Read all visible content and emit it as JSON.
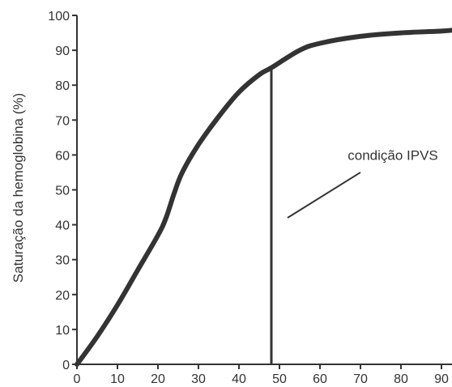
{
  "chart_data": {
    "type": "line",
    "title": "",
    "xlabel": "",
    "ylabel": "Saturação da hemoglobina (%)",
    "xlim": [
      0,
      90
    ],
    "ylim": [
      0,
      100
    ],
    "x_ticks": [
      0,
      10,
      20,
      30,
      40,
      50,
      60,
      70,
      80,
      90
    ],
    "y_ticks": [
      0,
      10,
      20,
      30,
      40,
      50,
      60,
      70,
      80,
      90,
      100
    ],
    "grid": false,
    "legend": "none",
    "colors": {
      "curve": "#333333",
      "axis": "#333333",
      "text": "#333333"
    },
    "series": [
      {
        "x": [
          0,
          5,
          10,
          15,
          20,
          22,
          24,
          26,
          30,
          35,
          40,
          45,
          48,
          55,
          60,
          70,
          80,
          90,
          95
        ],
        "y": [
          0,
          8,
          17,
          27,
          37,
          42,
          49,
          55,
          63,
          71,
          78,
          83,
          85,
          90,
          92,
          94,
          95,
          95.5,
          96
        ]
      }
    ],
    "vertical_marker": {
      "x": 48,
      "y_top": 85
    },
    "annotations": [
      {
        "text": "condição IPVS",
        "x": 78,
        "y": 60,
        "pointer_from": [
          70,
          55
        ],
        "pointer_to": [
          52,
          42
        ]
      }
    ]
  }
}
